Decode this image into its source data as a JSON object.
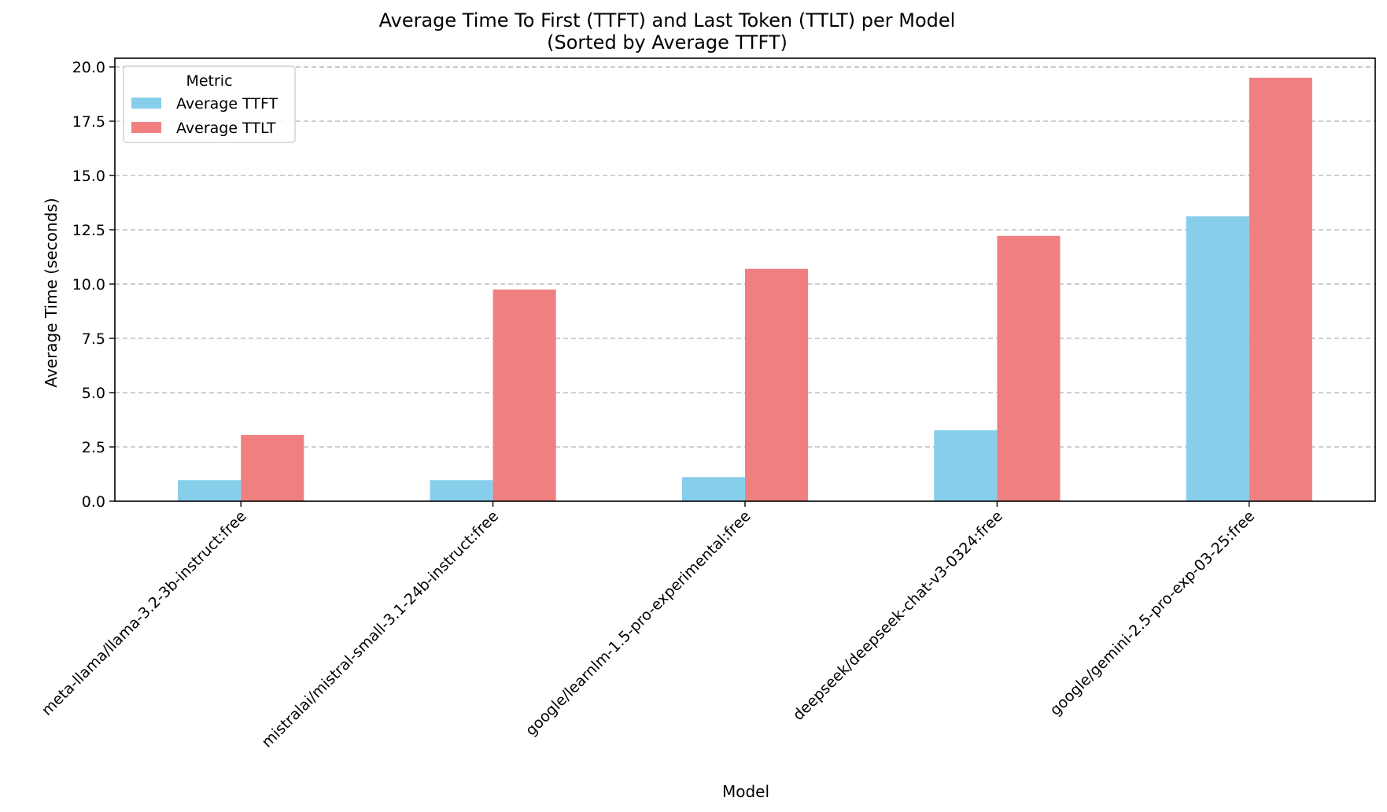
{
  "chart_data": {
    "type": "bar",
    "title": "Average Time To First (TTFT) and Last Token (TTLT) per Model",
    "subtitle": "(Sorted by Average TTFT)",
    "xlabel": "Model",
    "ylabel": "Average Time (seconds)",
    "ylim": [
      0,
      20.4
    ],
    "yticks": [
      0.0,
      2.5,
      5.0,
      7.5,
      10.0,
      12.5,
      15.0,
      17.5,
      20.0
    ],
    "ytick_labels": [
      "0.0",
      "2.5",
      "5.0",
      "7.5",
      "10.0",
      "12.5",
      "15.0",
      "17.5",
      "20.0"
    ],
    "grid": "y",
    "categories": [
      "meta-llama/llama-3.2-3b-instruct:free",
      "mistralai/mistral-small-3.1-24b-instruct:free",
      "google/learnlm-1.5-pro-experimental:free",
      "deepseek/deepseek-chat-v3-0324:free",
      "google/gemini-2.5-pro-exp-03-25:free"
    ],
    "series": [
      {
        "name": "Average TTFT",
        "color": "#87ceeb",
        "values": [
          0.97,
          0.97,
          1.11,
          3.27,
          13.12
        ]
      },
      {
        "name": "Average TTLT",
        "color": "#f08080",
        "values": [
          3.05,
          9.75,
          10.7,
          12.22,
          19.5
        ]
      }
    ],
    "legend": {
      "title": "Metric",
      "position": "top-left"
    }
  }
}
